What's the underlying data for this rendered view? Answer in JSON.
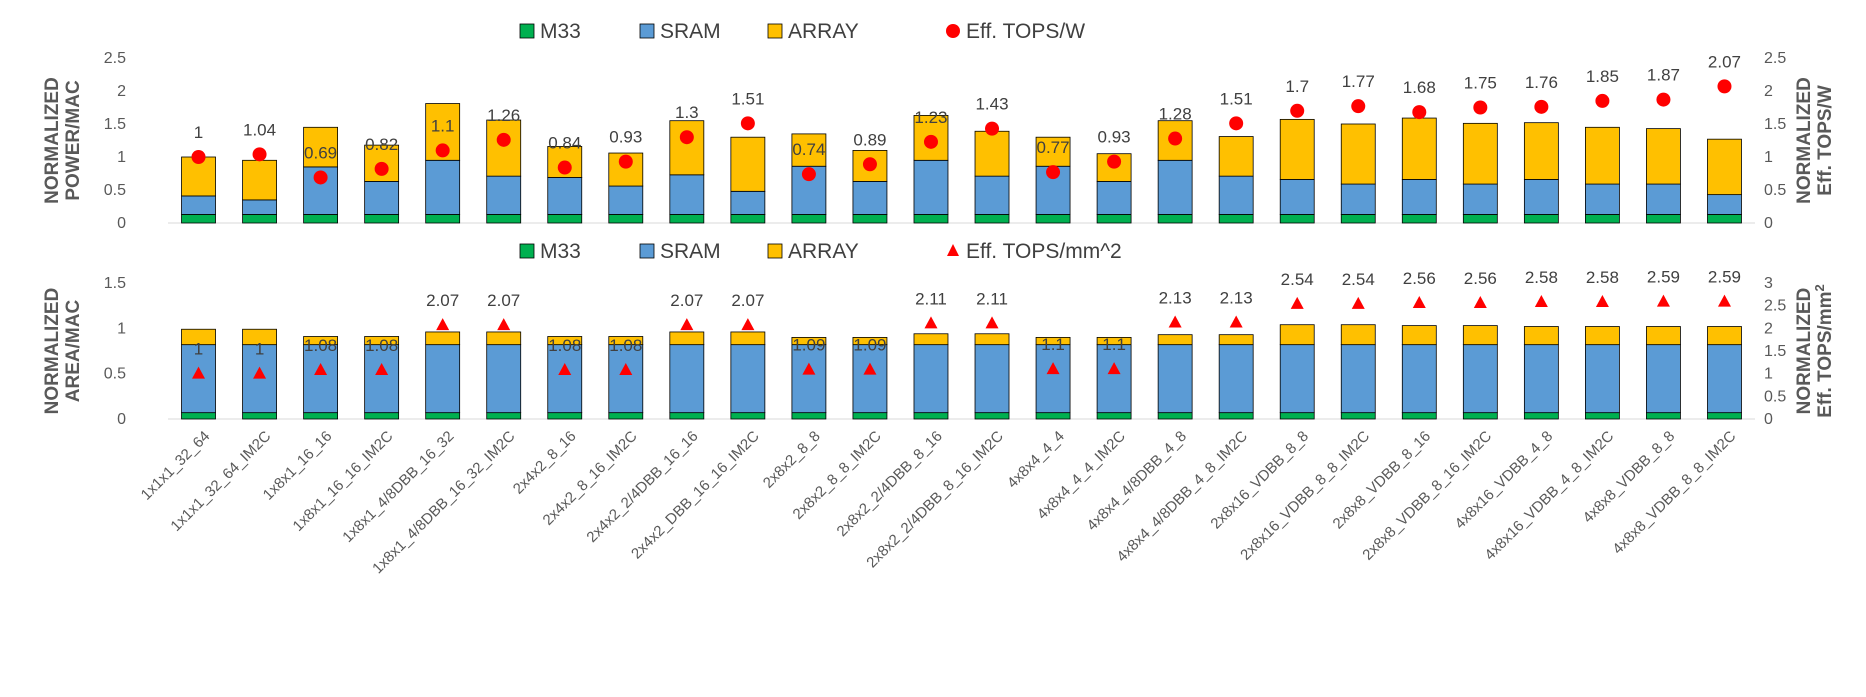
{
  "chart_data": [
    {
      "type": "bar",
      "stacked": true,
      "categories": [
        "1x1x1_32_64",
        "1x1x1_32_64_IM2C",
        "1x8x1_16_16",
        "1x8x1_16_16_IM2C",
        "1x8x1_4/8DBB_16_32",
        "1x8x1_4/8DBB_16_32_IM2C",
        "2x4x2_8_16",
        "2x4x2_8_16_IM2C",
        "2x4x2_2/4DBB_16_16",
        "2x4x2_DBB_16_16_IM2C",
        "2x8x2_8_8",
        "2x8x2_8_8_IM2C",
        "2x8x2_2/4DBB_8_16",
        "2x8x2_2/4DBB_8_16_IM2C",
        "4x8x4_4_4",
        "4x8x4_4_4_IM2C",
        "4x8x4_4/8DBB_4_8",
        "4x8x4_4/8DBB_4_8_IM2C",
        "2x8x16_VDBB_8_8",
        "2x8x16_VDBB_8_8_IM2C",
        "2x8x8_VDBB_8_16",
        "2x8x8_VDBB_8_16_IM2C",
        "4x8x16_VDBB_4_8",
        "4x8x16_VDBB_4_8_IM2C",
        "4x8x8_VDBB_8_8",
        "4x8x8_VDBB_8_8_IM2C"
      ],
      "series": [
        {
          "name": "M33",
          "color": "#00b050",
          "values": [
            0.13,
            0.13,
            0.13,
            0.13,
            0.13,
            0.13,
            0.13,
            0.13,
            0.13,
            0.13,
            0.13,
            0.13,
            0.13,
            0.13,
            0.13,
            0.13,
            0.13,
            0.13,
            0.13,
            0.13,
            0.13,
            0.13,
            0.13,
            0.13,
            0.13,
            0.13
          ]
        },
        {
          "name": "SRAM",
          "color": "#5b9bd5",
          "values": [
            0.28,
            0.22,
            0.72,
            0.5,
            0.82,
            0.58,
            0.56,
            0.43,
            0.6,
            0.35,
            0.73,
            0.5,
            0.82,
            0.58,
            0.73,
            0.5,
            0.82,
            0.58,
            0.53,
            0.46,
            0.53,
            0.46,
            0.53,
            0.46,
            0.46,
            0.3
          ]
        },
        {
          "name": "ARRAY",
          "color": "#ffc000",
          "values": [
            0.59,
            0.6,
            0.6,
            0.55,
            0.86,
            0.85,
            0.47,
            0.5,
            0.82,
            0.82,
            0.49,
            0.47,
            0.68,
            0.68,
            0.44,
            0.42,
            0.6,
            0.6,
            0.91,
            0.91,
            0.93,
            0.92,
            0.86,
            0.86,
            0.84,
            0.84
          ]
        },
        {
          "name": "Eff. TOPS/W",
          "type": "scatter",
          "marker": "circle",
          "color": "#ff0000",
          "axis": "right",
          "values": [
            1,
            1.04,
            0.69,
            0.82,
            1.1,
            1.26,
            0.84,
            0.93,
            1.3,
            1.51,
            0.74,
            0.89,
            1.23,
            1.43,
            0.77,
            0.93,
            1.28,
            1.51,
            1.7,
            1.77,
            1.68,
            1.75,
            1.76,
            1.85,
            1.87,
            2.07
          ],
          "labels": [
            "1",
            "1.04",
            "0.69",
            "0.82",
            "1.1",
            "1.26",
            "0.84",
            "0.93",
            "1.3",
            "1.51",
            "0.74",
            "0.89",
            "1.23",
            "1.43",
            "0.77",
            "0.93",
            "1.28",
            "1.51",
            "1.7",
            "1.77",
            "1.68",
            "1.75",
            "1.76",
            "1.85",
            "1.87",
            "2.07"
          ]
        }
      ],
      "ylabel": "NORMALIZED POWER/MAC",
      "ylim": [
        0,
        2.5
      ],
      "yticks": [
        "0",
        "0.5",
        "1",
        "1.5",
        "2",
        "2.5"
      ],
      "y2label": "NORMALIZED Eff. TOPS/W",
      "y2lim": [
        0,
        2.5
      ],
      "y2ticks": [
        "0",
        "0.5",
        "1",
        "1.5",
        "2",
        "2.5"
      ],
      "legend": [
        "M33",
        "SRAM",
        "ARRAY",
        "Eff. TOPS/W"
      ],
      "legend_position": "top"
    },
    {
      "type": "bar",
      "stacked": true,
      "categories": [
        "1x1x1_32_64",
        "1x1x1_32_64_IM2C",
        "1x8x1_16_16",
        "1x8x1_16_16_IM2C",
        "1x8x1_4/8DBB_16_32",
        "1x8x1_4/8DBB_16_32_IM2C",
        "2x4x2_8_16",
        "2x4x2_8_16_IM2C",
        "2x4x2_2/4DBB_16_16",
        "2x4x2_DBB_16_16_IM2C",
        "2x8x2_8_8",
        "2x8x2_8_8_IM2C",
        "2x8x2_2/4DBB_8_16",
        "2x8x2_2/4DBB_8_16_IM2C",
        "4x8x4_4_4",
        "4x8x4_4_4_IM2C",
        "4x8x4_4/8DBB_4_8",
        "4x8x4_4/8DBB_4_8_IM2C",
        "2x8x16_VDBB_8_8",
        "2x8x16_VDBB_8_8_IM2C",
        "2x8x8_VDBB_8_16",
        "2x8x8_VDBB_8_16_IM2C",
        "4x8x16_VDBB_4_8",
        "4x8x16_VDBB_4_8_IM2C",
        "4x8x8_VDBB_8_8",
        "4x8x8_VDBB_8_8_IM2C"
      ],
      "series": [
        {
          "name": "M33",
          "color": "#00b050",
          "values": [
            0.07,
            0.07,
            0.07,
            0.07,
            0.07,
            0.07,
            0.07,
            0.07,
            0.07,
            0.07,
            0.07,
            0.07,
            0.07,
            0.07,
            0.07,
            0.07,
            0.07,
            0.07,
            0.07,
            0.07,
            0.07,
            0.07,
            0.07,
            0.07,
            0.07,
            0.07
          ]
        },
        {
          "name": "SRAM",
          "color": "#5b9bd5",
          "values": [
            0.75,
            0.75,
            0.75,
            0.75,
            0.75,
            0.75,
            0.75,
            0.75,
            0.75,
            0.75,
            0.75,
            0.75,
            0.75,
            0.75,
            0.75,
            0.75,
            0.75,
            0.75,
            0.75,
            0.75,
            0.75,
            0.75,
            0.75,
            0.75,
            0.75,
            0.75
          ]
        },
        {
          "name": "ARRAY",
          "color": "#ffc000",
          "values": [
            0.17,
            0.17,
            0.09,
            0.09,
            0.14,
            0.14,
            0.09,
            0.09,
            0.14,
            0.14,
            0.08,
            0.08,
            0.12,
            0.12,
            0.08,
            0.08,
            0.11,
            0.11,
            0.22,
            0.22,
            0.21,
            0.21,
            0.2,
            0.2,
            0.2,
            0.2
          ]
        },
        {
          "name": "Eff. TOPS/mm^2",
          "type": "scatter",
          "marker": "triangle",
          "color": "#ff0000",
          "axis": "right",
          "values": [
            1,
            1,
            1.08,
            1.08,
            2.07,
            2.07,
            1.08,
            1.08,
            2.07,
            2.07,
            1.09,
            1.09,
            2.11,
            2.11,
            1.1,
            1.1,
            2.13,
            2.13,
            2.54,
            2.54,
            2.56,
            2.56,
            2.58,
            2.58,
            2.59,
            2.59
          ],
          "labels": [
            "1",
            "1",
            "1.08",
            "1.08",
            "2.07",
            "2.07",
            "1.08",
            "1.08",
            "2.07",
            "2.07",
            "1.09",
            "1.09",
            "2.11",
            "2.11",
            "1.1",
            "1.1",
            "2.13",
            "2.13",
            "2.54",
            "2.54",
            "2.56",
            "2.56",
            "2.58",
            "2.58",
            "2.59",
            "2.59"
          ]
        }
      ],
      "ylabel": "NORMALIZED AREA/MAC",
      "ylim": [
        0,
        1.5
      ],
      "yticks": [
        "0",
        "0.5",
        "1",
        "1.5"
      ],
      "y2label": "NORMALIZED Eff. TOPS/mm",
      "y2label_superscript": "2",
      "y2lim": [
        0,
        3
      ],
      "y2ticks": [
        "0",
        "0.5",
        "1",
        "1.5",
        "2",
        "2.5",
        "3"
      ],
      "legend": [
        "M33",
        "SRAM",
        "ARRAY",
        "Eff. TOPS/mm^2"
      ],
      "legend_position": "top"
    }
  ]
}
